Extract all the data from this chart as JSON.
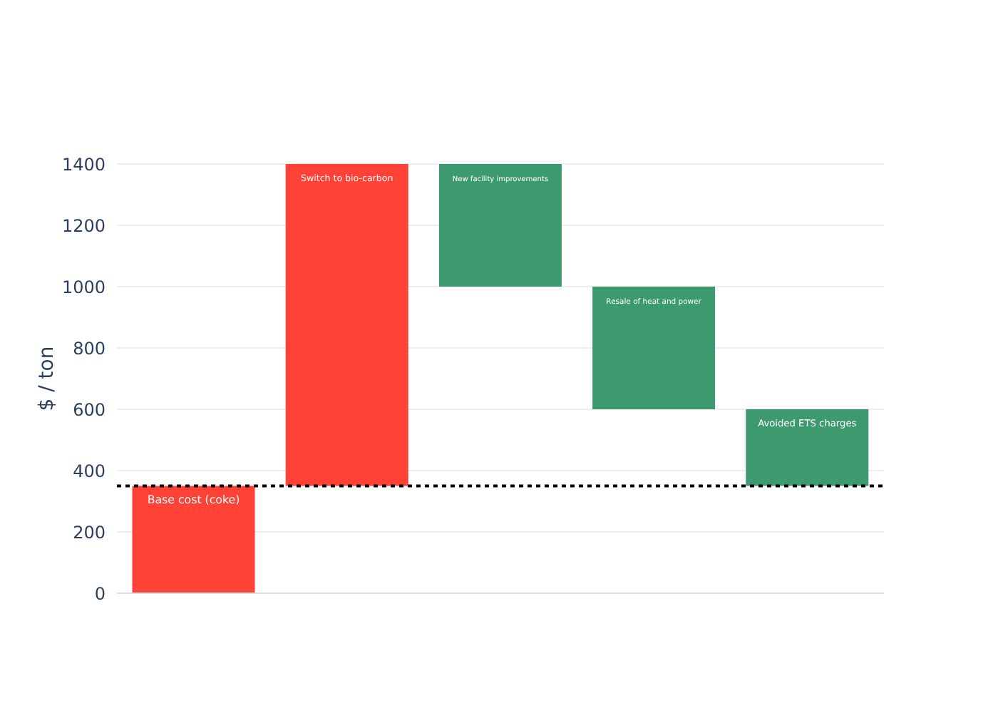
{
  "chart_data": {
    "type": "bar",
    "ylabel": "$ / ton",
    "categories": [
      "Base cost (coke)",
      "Switch to bio-carbon",
      "New facility improvements",
      "Resale of heat and power",
      "Avoided ETS charges"
    ],
    "base": [
      0,
      350,
      1000,
      600,
      350
    ],
    "values": [
      350,
      1050,
      400,
      400,
      250
    ],
    "colors": [
      "#ff4136",
      "#ff4136",
      "#3d9970",
      "#3d9970",
      "#3d9970"
    ],
    "ylim": [
      0,
      1400
    ],
    "yticks": [
      0,
      200,
      400,
      600,
      800,
      1000,
      1200,
      1400
    ],
    "grid": "y",
    "tick_labels": "y",
    "legend": false,
    "ref_lines": [
      {
        "axis": "y",
        "value": 350,
        "color": "#000000",
        "line_style": "dotted"
      }
    ]
  }
}
